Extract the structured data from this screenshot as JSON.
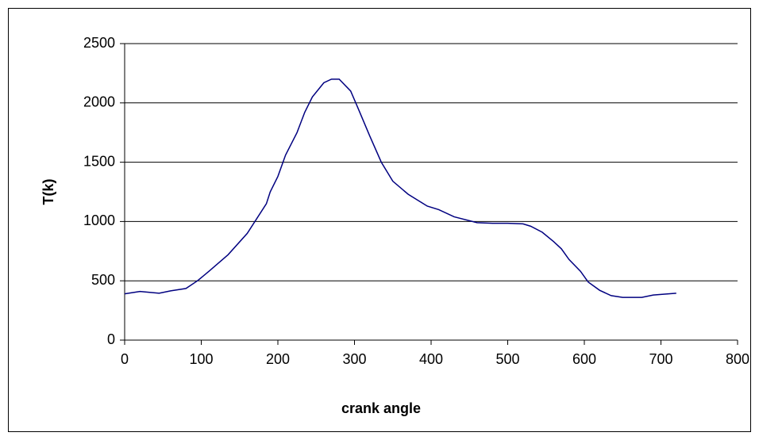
{
  "chart_data": {
    "type": "line",
    "xlabel": "crank angle",
    "ylabel": "T(k)",
    "x": [
      0,
      20,
      45,
      60,
      80,
      95,
      110,
      135,
      160,
      185,
      190,
      200,
      210,
      225,
      235,
      245,
      260,
      270,
      280,
      295,
      305,
      320,
      335,
      350,
      370,
      385,
      395,
      410,
      430,
      460,
      480,
      500,
      520,
      530,
      545,
      560,
      570,
      580,
      595,
      605,
      620,
      635,
      650,
      675,
      690,
      720
    ],
    "series": [
      {
        "name": "T",
        "color": "#000080",
        "values": [
          390,
          410,
          395,
          415,
          435,
          500,
          580,
          720,
          900,
          1150,
          1250,
          1380,
          1560,
          1750,
          1920,
          2050,
          2170,
          2200,
          2200,
          2100,
          1950,
          1720,
          1500,
          1340,
          1230,
          1170,
          1130,
          1100,
          1040,
          990,
          985,
          985,
          980,
          960,
          910,
          830,
          770,
          680,
          580,
          490,
          420,
          375,
          360,
          360,
          380,
          395
        ]
      }
    ],
    "xlim": [
      0,
      800
    ],
    "xticks": [
      0,
      100,
      200,
      300,
      400,
      500,
      600,
      700,
      800
    ],
    "ylim": [
      0,
      2500
    ],
    "yticks": [
      0,
      500,
      1000,
      1500,
      2000,
      2500
    ],
    "grid": true
  }
}
